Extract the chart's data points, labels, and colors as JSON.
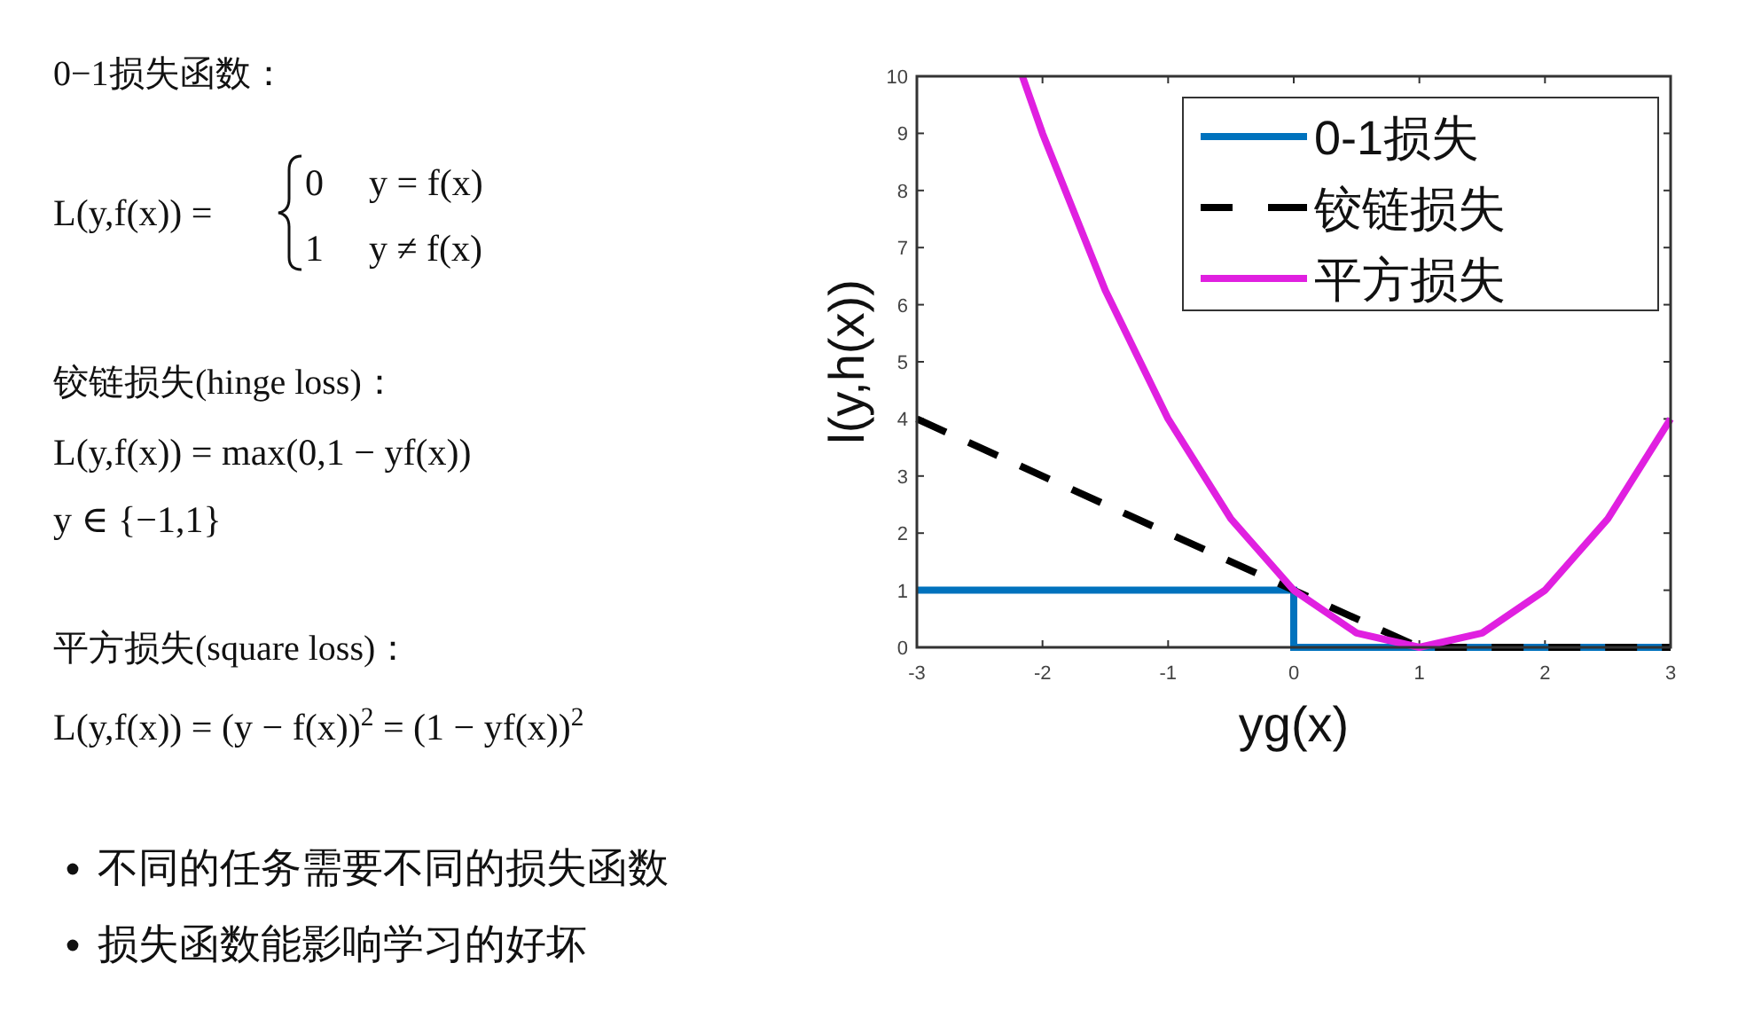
{
  "chart_data": {
    "type": "line",
    "xlabel": "yg(x)",
    "ylabel": "l(y,h(x))",
    "xlim": [
      -3,
      3
    ],
    "ylim": [
      0,
      10
    ],
    "xticks": [
      -3,
      -2,
      -1,
      0,
      1,
      2,
      3
    ],
    "yticks": [
      0,
      1,
      2,
      3,
      4,
      5,
      6,
      7,
      8,
      9,
      10
    ],
    "grid": false,
    "legend": "top right",
    "series": [
      {
        "name": "0-1损失",
        "color": "#0072bd",
        "line_style": "solid",
        "x": [
          -3,
          0,
          0,
          3
        ],
        "values": [
          1,
          1,
          0,
          0
        ]
      },
      {
        "name": "铰链损失",
        "color": "#000000",
        "line_style": "dashed",
        "x": [
          -3,
          1,
          3
        ],
        "values": [
          4,
          0,
          0
        ]
      },
      {
        "name": "平方损失",
        "color": "#e020e0",
        "line_style": "solid",
        "x": [
          -2.16,
          -2,
          -1.5,
          -1,
          -0.5,
          0,
          0.5,
          1,
          1.5,
          2,
          2.5,
          3
        ],
        "values": [
          10,
          9,
          6.25,
          4,
          2.25,
          1,
          0.25,
          0,
          0.25,
          1,
          2.25,
          4
        ]
      }
    ],
    "annotations": [
      "0−1损失函数：",
      "L(y,f(x)) =",
      "0",
      "y = f(x)",
      "1",
      "y ≠ f(x)",
      "铰链损失(hinge loss)：",
      "L(y,f(x)) = max(0,1 − yf(x))",
      "y ∈ {−1,1}",
      "平方损失(square loss)：",
      "L(y,f(x)) = (y − f(x))$^{2}$ = (1 − yf(x))$^{2}$",
      "不同的任务需要不同的损失函数",
      "损失函数能影响学习的好坏"
    ]
  }
}
